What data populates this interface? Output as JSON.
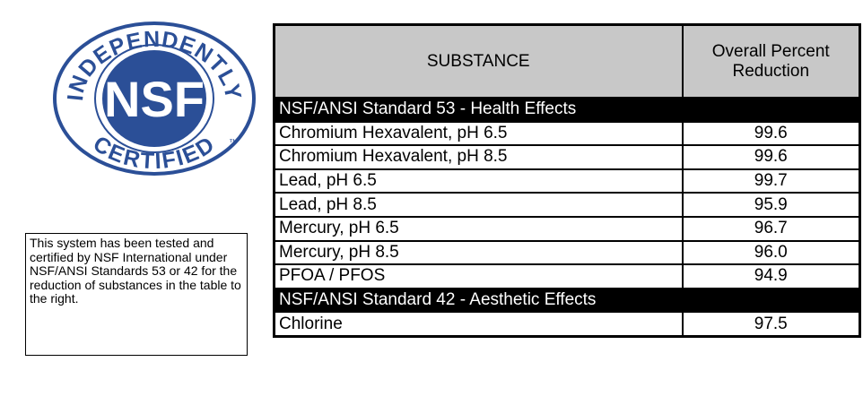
{
  "logo": {
    "arc_top": "INDEPENDENTLY",
    "center": "NSF",
    "arc_bottom": "CERTIFIED",
    "trademark": "™"
  },
  "note": "This system has been tested and certified by NSF International under NSF/ANSI Standards 53 or 42 for the reduction of substances in the table to the right.",
  "table": {
    "header": [
      "SUBSTANCE",
      "Overall Percent Reduction"
    ],
    "sections": [
      {
        "title": "NSF/ANSI Standard 53 - Health Effects",
        "rows": [
          [
            "Chromium Hexavalent, pH 6.5",
            "99.6"
          ],
          [
            "Chromium Hexavalent, pH 8.5",
            "99.6"
          ],
          [
            "Lead, pH 6.5",
            "99.7"
          ],
          [
            "Lead, pH 8.5",
            "95.9"
          ],
          [
            "Mercury, pH 6.5",
            "96.7"
          ],
          [
            "Mercury, pH 8.5",
            "96.0"
          ],
          [
            "PFOA / PFOS",
            "94.9"
          ]
        ]
      },
      {
        "title": "NSF/ANSI Standard 42 - Aesthetic Effects",
        "rows": [
          [
            "Chlorine",
            "97.5"
          ]
        ]
      }
    ]
  }
}
